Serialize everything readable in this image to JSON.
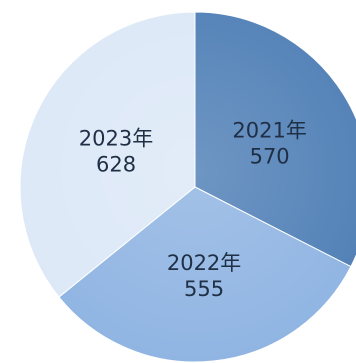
{
  "chart_data": {
    "type": "pie",
    "categories": [
      "2021年",
      "2022年",
      "2023年"
    ],
    "values": [
      570,
      555,
      628
    ],
    "value_labels": [
      "570",
      "555",
      "628"
    ],
    "colors": {
      "2021年": "#4f7fb6",
      "2022年": "#8fb4e2",
      "2023年": "#dce8f7"
    },
    "start_position": "top",
    "direction": "clockwise",
    "legend": "none",
    "title": ""
  }
}
